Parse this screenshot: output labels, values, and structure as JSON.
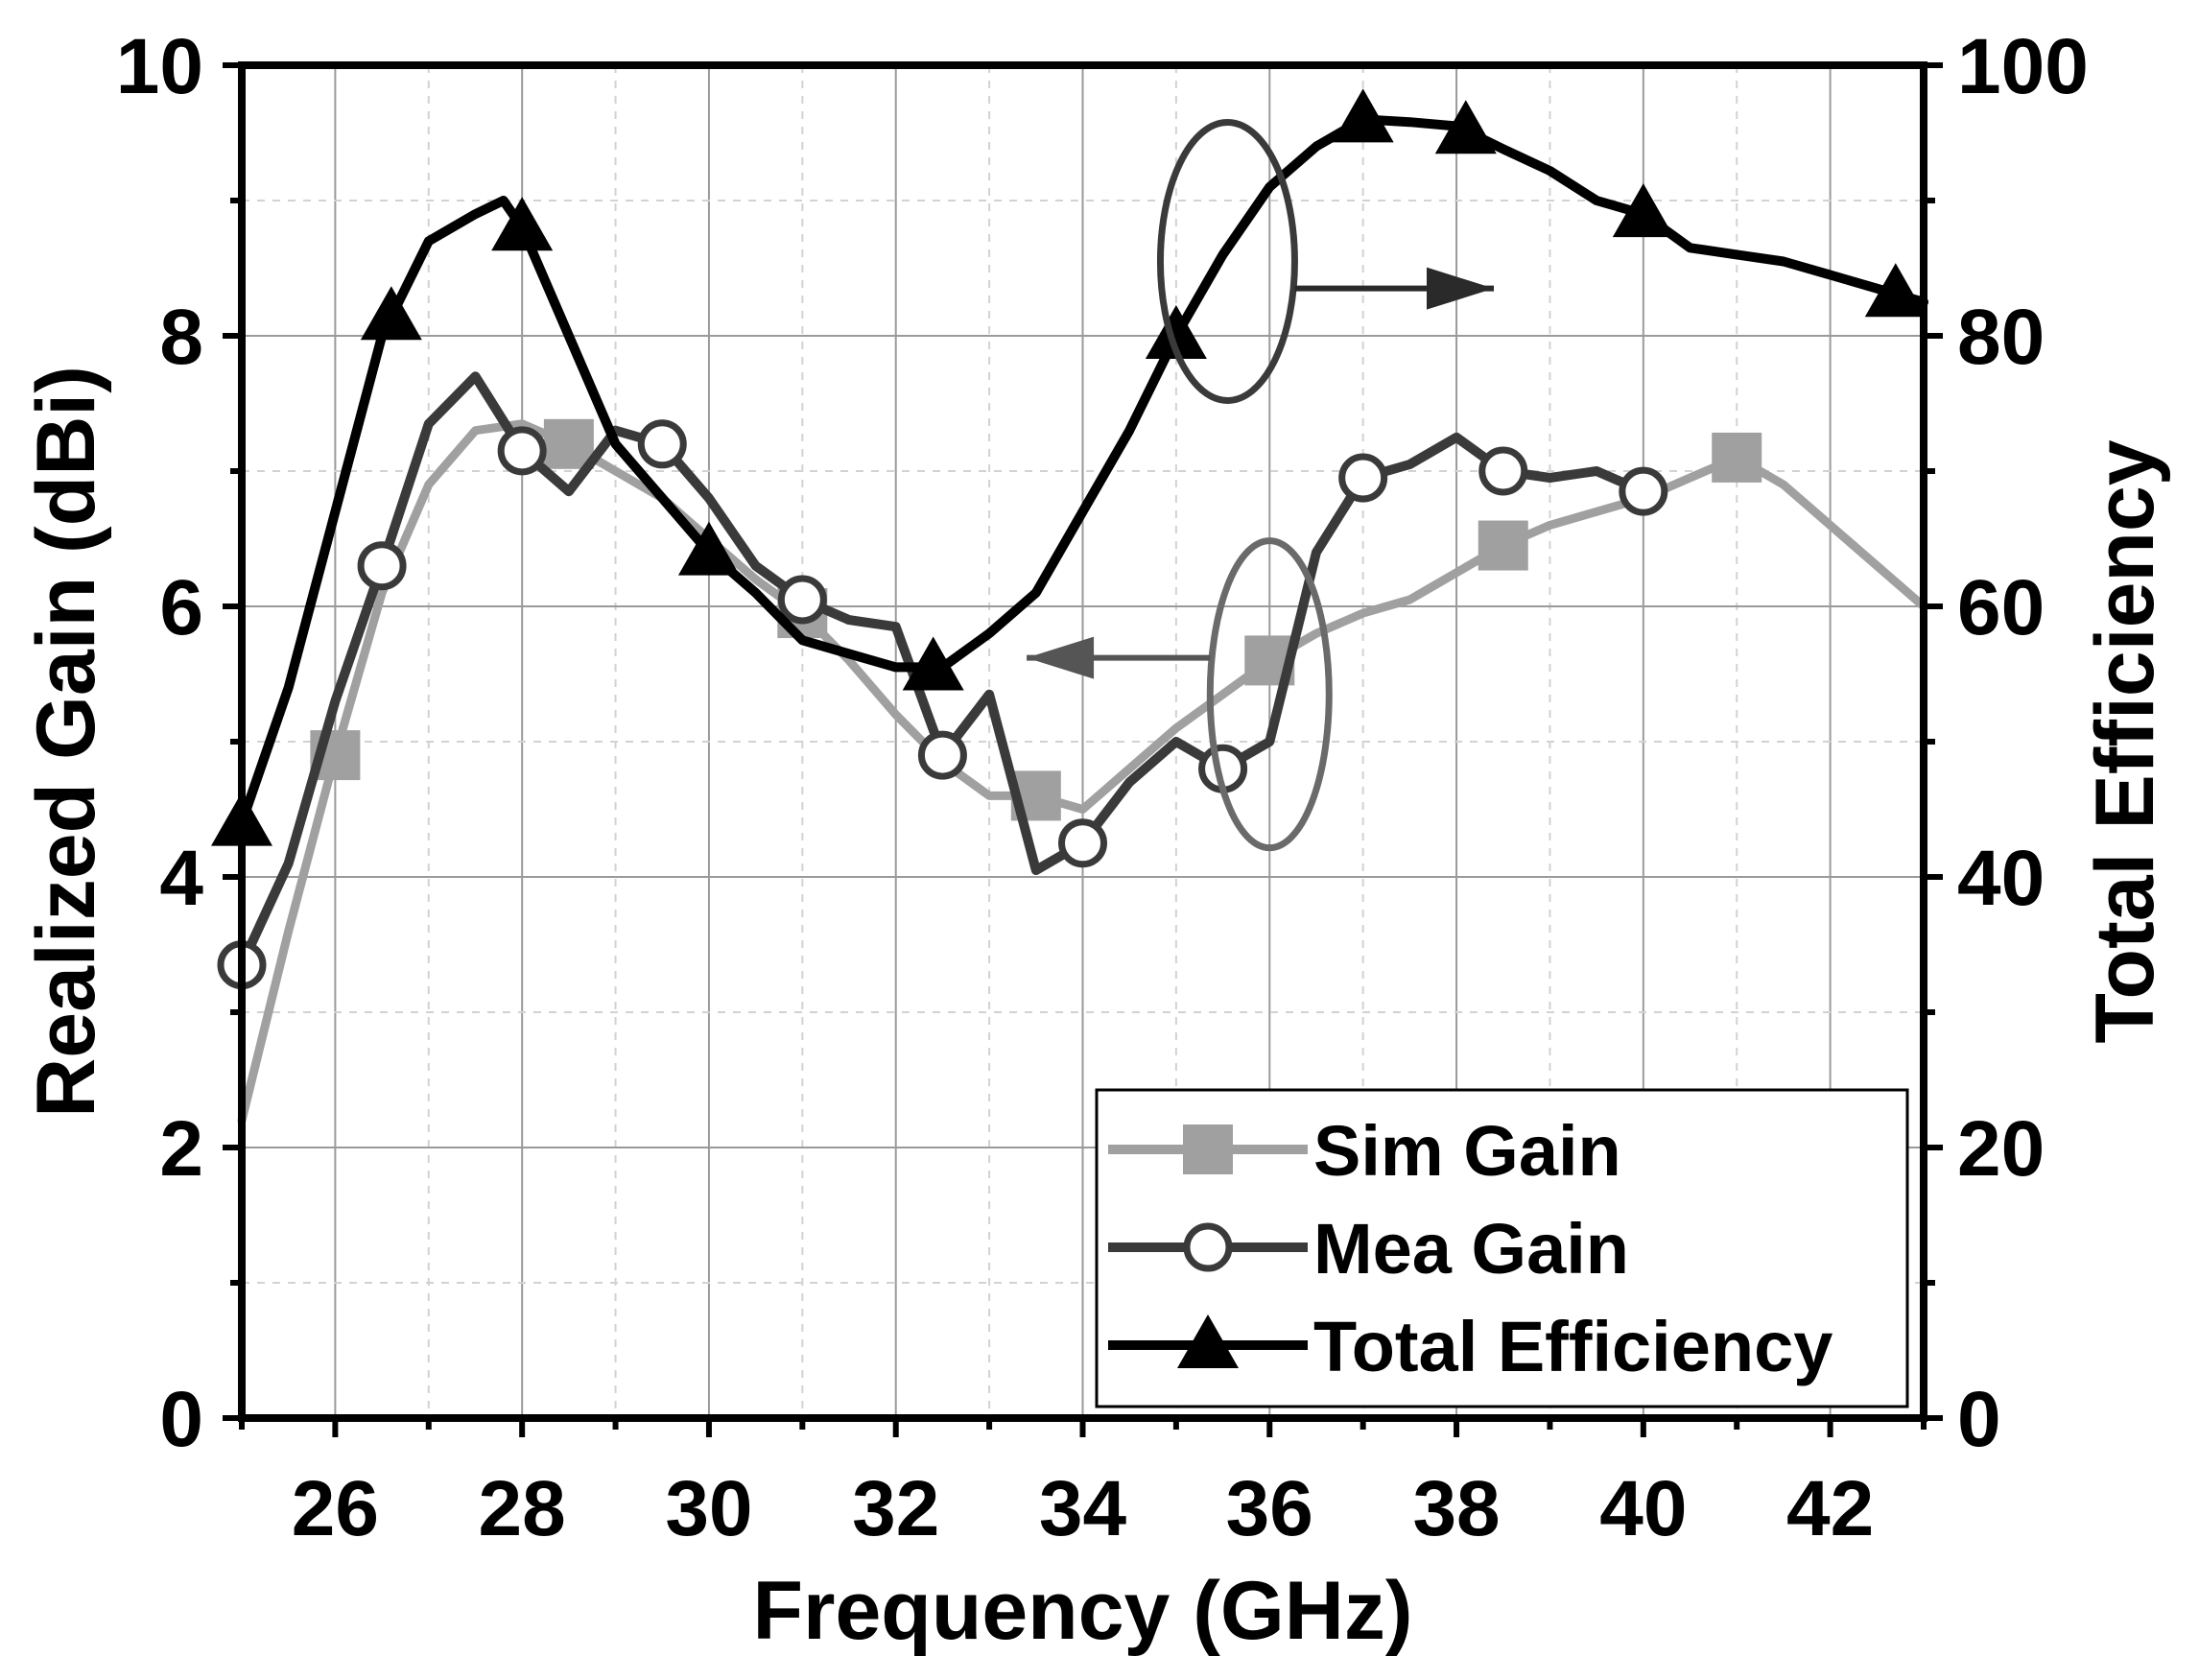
{
  "chart_data": {
    "type": "line",
    "title": "",
    "xlabel": "Frequency (GHz)",
    "ylabel_left": "Realized Gain (dBi)",
    "ylabel_right": "Total Efficiency",
    "xlim": [
      25,
      43
    ],
    "ylim_left": [
      0,
      10
    ],
    "ylim_right": [
      0,
      100
    ],
    "x_ticks": [
      "26",
      "28",
      "30",
      "32",
      "34",
      "36",
      "38",
      "40",
      "42"
    ],
    "x_tick_values": [
      26,
      28,
      30,
      32,
      34,
      36,
      38,
      40,
      42
    ],
    "y_left_ticks": [
      "0",
      "2",
      "4",
      "6",
      "8",
      "10"
    ],
    "y_left_tick_values": [
      0,
      2,
      4,
      6,
      8,
      10
    ],
    "y_right_ticks": [
      "0",
      "20",
      "40",
      "60",
      "80",
      "100"
    ],
    "y_right_tick_values": [
      0,
      20,
      40,
      60,
      80,
      100
    ],
    "grid": true,
    "legend_position": "bottom-right",
    "series": [
      {
        "name": "Sim Gain",
        "axis": "left",
        "color": "#a0a0a0",
        "marker": "square",
        "points": [
          [
            25.0,
            2.2
          ],
          [
            25.5,
            3.6
          ],
          [
            26.0,
            4.9
          ],
          [
            26.5,
            6.1
          ],
          [
            27.0,
            6.9
          ],
          [
            27.5,
            7.3
          ],
          [
            28.0,
            7.35
          ],
          [
            28.5,
            7.2
          ],
          [
            29.0,
            7.0
          ],
          [
            29.5,
            6.8
          ],
          [
            30.0,
            6.5
          ],
          [
            30.5,
            6.2
          ],
          [
            31.0,
            5.95
          ],
          [
            31.5,
            5.6
          ],
          [
            32.0,
            5.2
          ],
          [
            32.5,
            4.85
          ],
          [
            33.0,
            4.6
          ],
          [
            33.5,
            4.6
          ],
          [
            34.0,
            4.5
          ],
          [
            34.5,
            4.8
          ],
          [
            35.0,
            5.1
          ],
          [
            35.5,
            5.35
          ],
          [
            36.0,
            5.6
          ],
          [
            36.5,
            5.8
          ],
          [
            37.0,
            5.95
          ],
          [
            37.5,
            6.05
          ],
          [
            38.0,
            6.25
          ],
          [
            38.5,
            6.45
          ],
          [
            39.0,
            6.6
          ],
          [
            39.5,
            6.7
          ],
          [
            40.0,
            6.8
          ],
          [
            40.5,
            6.95
          ],
          [
            41.0,
            7.1
          ],
          [
            41.5,
            6.9
          ],
          [
            42.0,
            6.6
          ],
          [
            42.5,
            6.3
          ],
          [
            43.0,
            6.0
          ]
        ],
        "marker_x": [
          26.0,
          28.5,
          31.0,
          33.5,
          36.0,
          38.5,
          41.0
        ]
      },
      {
        "name": "Mea Gain",
        "axis": "left",
        "color": "#3a3a3a",
        "marker": "circle",
        "points": [
          [
            25.0,
            3.35
          ],
          [
            25.5,
            4.1
          ],
          [
            26.0,
            5.3
          ],
          [
            26.5,
            6.3
          ],
          [
            27.0,
            7.35
          ],
          [
            27.5,
            7.7
          ],
          [
            28.0,
            7.15
          ],
          [
            28.5,
            6.85
          ],
          [
            29.0,
            7.3
          ],
          [
            29.5,
            7.2
          ],
          [
            30.0,
            6.8
          ],
          [
            30.5,
            6.3
          ],
          [
            31.0,
            6.05
          ],
          [
            31.5,
            5.9
          ],
          [
            32.0,
            5.85
          ],
          [
            32.5,
            4.9
          ],
          [
            33.0,
            5.35
          ],
          [
            33.5,
            4.05
          ],
          [
            34.0,
            4.25
          ],
          [
            34.5,
            4.7
          ],
          [
            35.0,
            5.0
          ],
          [
            35.5,
            4.8
          ],
          [
            36.0,
            5.0
          ],
          [
            36.5,
            6.4
          ],
          [
            37.0,
            6.95
          ],
          [
            37.5,
            7.05
          ],
          [
            38.0,
            7.25
          ],
          [
            38.5,
            7.0
          ],
          [
            39.0,
            6.95
          ],
          [
            39.5,
            7.0
          ],
          [
            40.0,
            6.85
          ]
        ],
        "marker_x": [
          25.0,
          26.5,
          28.0,
          29.5,
          31.0,
          32.5,
          34.0,
          35.5,
          37.0,
          38.5,
          40.0
        ]
      },
      {
        "name": "Total Efficiency",
        "axis": "right",
        "color": "#000000",
        "marker": "triangle",
        "points": [
          [
            25.0,
            44
          ],
          [
            25.5,
            54
          ],
          [
            26.0,
            67
          ],
          [
            26.5,
            80
          ],
          [
            27.0,
            87
          ],
          [
            27.5,
            89
          ],
          [
            27.8,
            90
          ],
          [
            28.0,
            88
          ],
          [
            28.5,
            80
          ],
          [
            29.0,
            72
          ],
          [
            29.5,
            68
          ],
          [
            30.0,
            64
          ],
          [
            30.5,
            61
          ],
          [
            31.0,
            57.5
          ],
          [
            31.5,
            56.5
          ],
          [
            32.0,
            55.5
          ],
          [
            32.5,
            55.5
          ],
          [
            33.0,
            58
          ],
          [
            33.5,
            61
          ],
          [
            34.0,
            67
          ],
          [
            34.5,
            73
          ],
          [
            35.0,
            80
          ],
          [
            35.5,
            86
          ],
          [
            36.0,
            91
          ],
          [
            36.5,
            94
          ],
          [
            37.0,
            96
          ],
          [
            37.5,
            95.8
          ],
          [
            38.0,
            95.5
          ],
          [
            38.5,
            93.8
          ],
          [
            39.0,
            92.2
          ],
          [
            39.5,
            90
          ],
          [
            40.0,
            89
          ],
          [
            40.5,
            86.5
          ],
          [
            41.0,
            86
          ],
          [
            41.5,
            85.5
          ],
          [
            42.0,
            84.5
          ],
          [
            42.5,
            83.5
          ],
          [
            43.0,
            82.5
          ]
        ],
        "marker_x": [
          25.0,
          26.6,
          28.0,
          30.0,
          32.4,
          35.0,
          37.0,
          38.1,
          40.0,
          42.7
        ]
      }
    ],
    "annotations": [
      {
        "type": "ellipse-arrow",
        "target_axis": "right",
        "direction": "right",
        "center": [
          35.5,
          8.55
        ]
      },
      {
        "type": "ellipse-arrow",
        "target_axis": "left",
        "direction": "left",
        "center": [
          36.0,
          5.35
        ]
      }
    ]
  }
}
